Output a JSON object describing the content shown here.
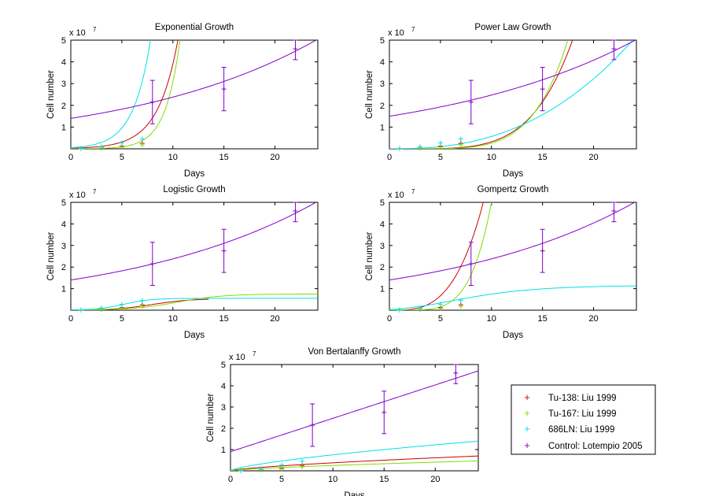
{
  "colors": {
    "tu138": "#cc0000",
    "tu167": "#80dd00",
    "ln686": "#00e0e8",
    "control": "#8000c8",
    "axis": "#000000"
  },
  "legend": {
    "position": "lower-right",
    "entries": [
      {
        "label": "Tu-138: Liu 1999",
        "series": "tu138"
      },
      {
        "label": "Tu-167: Liu 1999",
        "series": "tu167"
      },
      {
        "label": "686LN: Liu 1999",
        "series": "ln686"
      },
      {
        "label": "Control: Lotempio 2005",
        "series": "control"
      }
    ]
  },
  "chart_data": [
    {
      "type": "line",
      "title": "Exponential Growth",
      "xlabel": "Days",
      "ylabel": "Cell number",
      "exponent_label": "x 10",
      "exponent": "7",
      "xlim": [
        0,
        24.2
      ],
      "ylim": [
        0,
        5
      ],
      "xticks": [
        0,
        5,
        10,
        15,
        20
      ],
      "yticks": [
        1,
        2,
        3,
        4,
        5
      ],
      "models": {
        "tu138": {
          "kind": "exp",
          "a": 0.025,
          "b": 0.505
        },
        "tu167": {
          "kind": "exp",
          "a": 0.0028,
          "b": 0.7
        },
        "ln686": {
          "kind": "exp",
          "a": 0.05,
          "b": 0.59
        },
        "control": {
          "kind": "exp",
          "a": 1.4,
          "b": 0.053
        }
      }
    },
    {
      "type": "line",
      "title": "Power Law Growth",
      "xlabel": "Days",
      "ylabel": "Cell number",
      "exponent_label": "x 10",
      "exponent": "7",
      "xlim": [
        0,
        24.2
      ],
      "ylim": [
        0,
        5
      ],
      "xticks": [
        0,
        5,
        10,
        15,
        20
      ],
      "yticks": [
        1,
        2,
        3,
        4,
        5
      ],
      "models": {
        "tu138": {
          "kind": "pow",
          "a": 6.4e-06,
          "p": 4.7
        },
        "tu167": {
          "kind": "pow",
          "a": 1.3e-06,
          "p": 5.3
        },
        "ln686": {
          "kind": "pow",
          "a": 0.0018,
          "p": 2.5
        },
        "control": {
          "kind": "exp",
          "a": 1.5,
          "b": 0.05
        }
      }
    },
    {
      "type": "line",
      "title": "Logistic Growth",
      "xlabel": "Days",
      "ylabel": "Cell number",
      "exponent_label": "x 10",
      "exponent": "7",
      "xlim": [
        0,
        24.2
      ],
      "ylim": [
        0,
        5
      ],
      "xticks": [
        0,
        5,
        10,
        15,
        20
      ],
      "yticks": [
        1,
        2,
        3,
        4,
        5
      ],
      "models": {
        "tu138": {
          "kind": "logistic",
          "K": 0.53,
          "r": 0.55,
          "t0": 8.0,
          "xmax": 13.5
        },
        "tu167": {
          "kind": "logistic",
          "K": 0.75,
          "r": 0.45,
          "t0": 10.5
        },
        "ln686": {
          "kind": "logistic",
          "K": 0.55,
          "r": 0.75,
          "t0": 5.2
        },
        "control": {
          "kind": "exp",
          "a": 1.4,
          "b": 0.053
        }
      }
    },
    {
      "type": "line",
      "title": "Gompertz Growth",
      "xlabel": "Days",
      "ylabel": "Cell number",
      "exponent_label": "x 10",
      "exponent": "7",
      "xlim": [
        0,
        24.2
      ],
      "ylim": [
        0,
        5
      ],
      "xticks": [
        0,
        5,
        10,
        15,
        20
      ],
      "yticks": [
        1,
        2,
        3,
        4,
        5
      ],
      "models": {
        "tu138": {
          "kind": "pow",
          "a": 0.0033,
          "p": 3.3
        },
        "tu167": {
          "kind": "pow",
          "a": 5e-05,
          "p": 5.0
        },
        "ln686": {
          "kind": "gompertz",
          "K": 1.15,
          "b": 0.21,
          "t0": 6.0
        },
        "control": {
          "kind": "exp",
          "a": 1.4,
          "b": 0.053
        }
      }
    },
    {
      "type": "line",
      "title": "Von Bertalanffy Growth",
      "xlabel": "Days",
      "ylabel": "Cell number",
      "exponent_label": "x 10",
      "exponent": "7",
      "xlim": [
        0,
        24.2
      ],
      "ylim": [
        0,
        5
      ],
      "xticks": [
        0,
        5,
        10,
        15,
        20
      ],
      "yticks": [
        1,
        2,
        3,
        4,
        5
      ],
      "models": {
        "tu138": {
          "kind": "pow",
          "a": 0.075,
          "p": 0.7
        },
        "tu167": {
          "kind": "pow",
          "a": 0.05,
          "p": 0.7
        },
        "ln686": {
          "kind": "pow",
          "a": 0.15,
          "p": 0.7
        },
        "control": {
          "kind": "lin",
          "a": 0.9,
          "b": 0.157
        }
      }
    }
  ],
  "observations": {
    "tu138": [
      {
        "x": 1,
        "y": 0.01
      },
      {
        "x": 3,
        "y": 0.04
      },
      {
        "x": 5,
        "y": 0.12
      },
      {
        "x": 7,
        "y": 0.25
      }
    ],
    "tu167": [
      {
        "x": 1,
        "y": 0.005
      },
      {
        "x": 3,
        "y": 0.03
      },
      {
        "x": 5,
        "y": 0.08
      },
      {
        "x": 7,
        "y": 0.18
      }
    ],
    "ln686": [
      {
        "x": 1,
        "y": 0.02
      },
      {
        "x": 3,
        "y": 0.1
      },
      {
        "x": 5,
        "y": 0.27
      },
      {
        "x": 7,
        "y": 0.45
      }
    ],
    "control": [
      {
        "x": 8,
        "y": 2.15,
        "err": 1.0
      },
      {
        "x": 15,
        "y": 2.75,
        "err": 1.0
      },
      {
        "x": 22,
        "y": 4.6,
        "err": 0.5
      }
    ]
  }
}
